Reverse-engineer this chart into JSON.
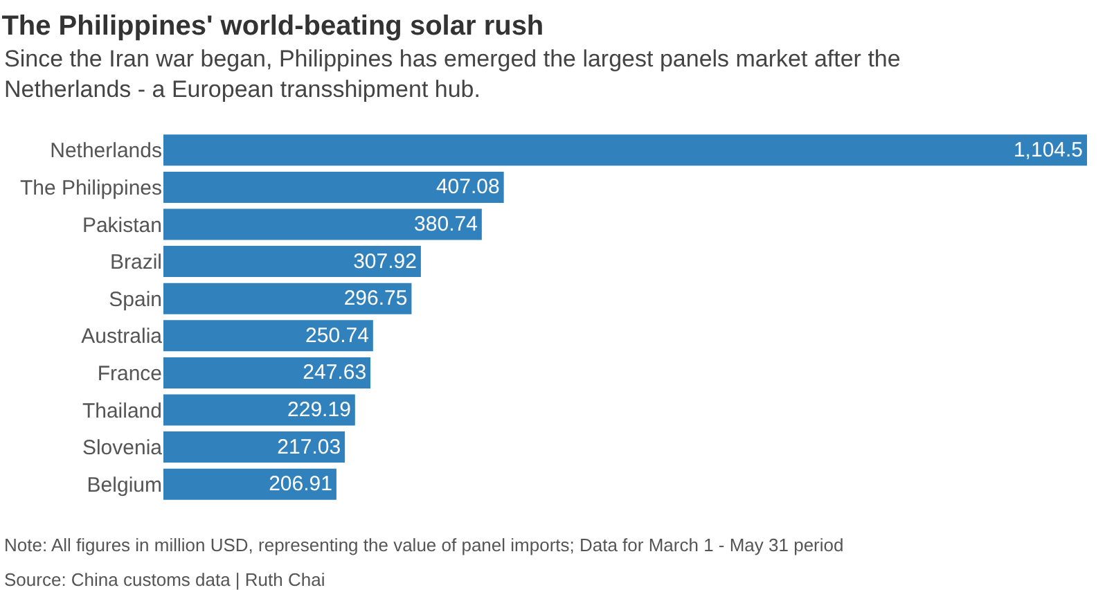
{
  "chart_data": {
    "type": "bar",
    "orientation": "horizontal",
    "title": "The Philippines' world-beating solar rush",
    "subtitle": "Since the Iran war began, Philippines has emerged the largest panels market after the Netherlands - a European transshipment hub.",
    "categories": [
      "Netherlands",
      "The Philippines",
      "Pakistan",
      "Brazil",
      "Spain",
      "Australia",
      "France",
      "Thailand",
      "Slovenia",
      "Belgium"
    ],
    "values": [
      1104.5,
      407.08,
      380.74,
      307.92,
      296.75,
      250.74,
      247.63,
      229.19,
      217.03,
      206.91
    ],
    "value_labels": [
      "1,104.5",
      "407.08",
      "380.74",
      "307.92",
      "296.75",
      "250.74",
      "247.63",
      "229.19",
      "217.03",
      "206.91"
    ],
    "color": "#3181bd",
    "annotations": [
      "Note: All figures in million USD, representing the value of panel imports; Data for March 1 - May 31 period",
      "Source: China customs data | Ruth Chai"
    ]
  }
}
